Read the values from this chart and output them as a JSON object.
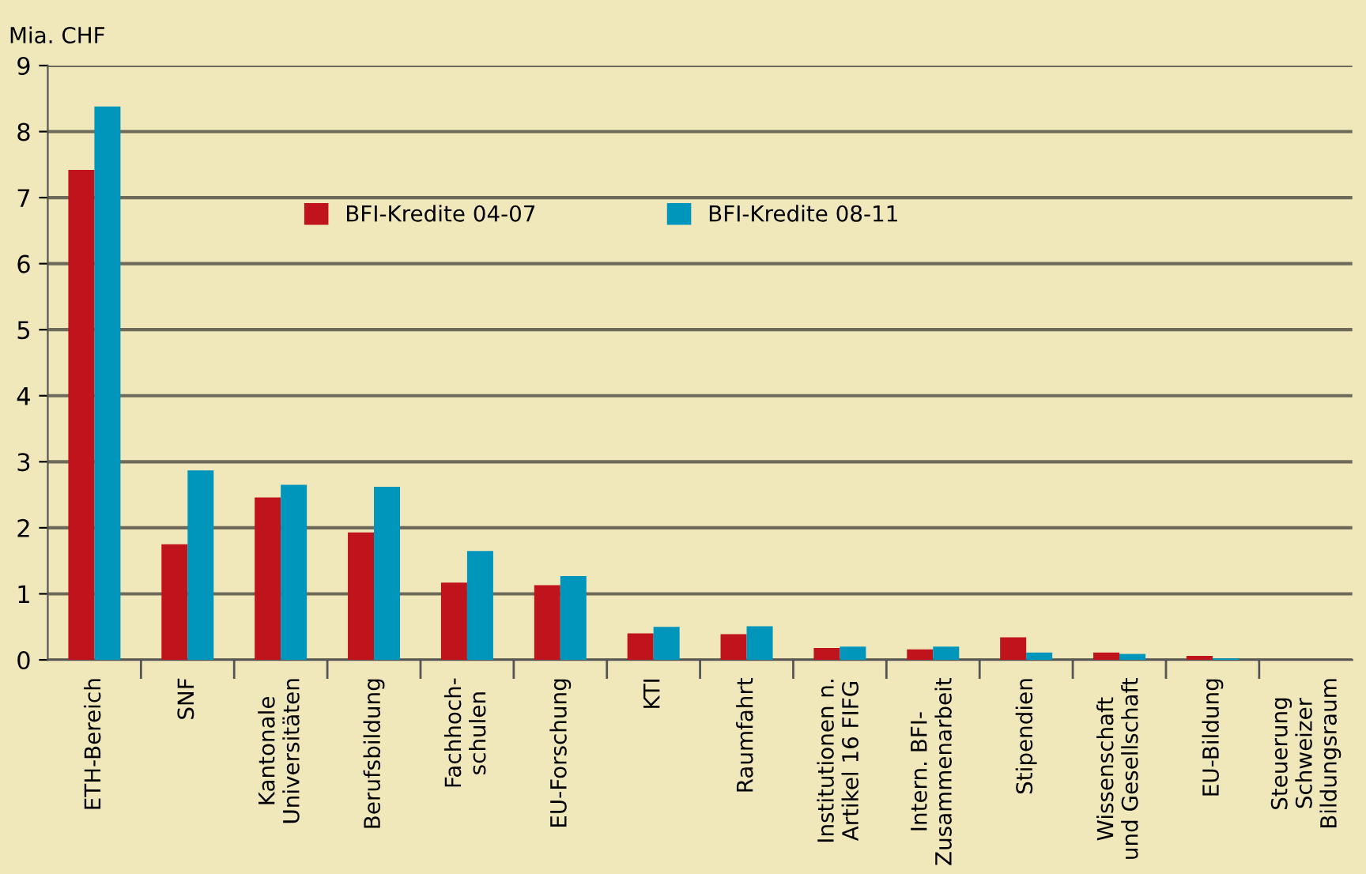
{
  "chart_data": {
    "type": "bar",
    "ylabel": "Mia. CHF",
    "categories": [
      "ETH-Bereich",
      "SNF",
      "Kantonale\nUniversitäten",
      "Berufsbildung",
      "Fachhoch-\nschulen",
      "EU-Forschung",
      "KTI",
      "Raumfahrt",
      "Institutionen n.\nArtikel 16 FIFG",
      "Intern. BFI-\nZusammenarbeit",
      "Stipendien",
      "Wissenschaft\nund Gesellschaft",
      "EU-Bildung",
      "Steuerung\nSchweizer\nBildungsraum"
    ],
    "series": [
      {
        "name": "BFI-Kredite 04-07",
        "color": "#c0141c",
        "values": [
          7.42,
          1.75,
          2.46,
          1.93,
          1.17,
          1.13,
          0.4,
          0.39,
          0.18,
          0.16,
          0.34,
          0.11,
          0.06,
          0
        ]
      },
      {
        "name": "BFI-Kredite 08-11",
        "color": "#0096bc",
        "values": [
          8.38,
          2.87,
          2.65,
          2.62,
          1.65,
          1.27,
          0.5,
          0.51,
          0.2,
          0.2,
          0.11,
          0.09,
          0.02,
          0
        ]
      }
    ],
    "ylim": [
      0,
      9
    ],
    "yticks": [
      0,
      1,
      2,
      3,
      4,
      5,
      6,
      7,
      8,
      9
    ],
    "grid": "y",
    "legend": "top"
  }
}
